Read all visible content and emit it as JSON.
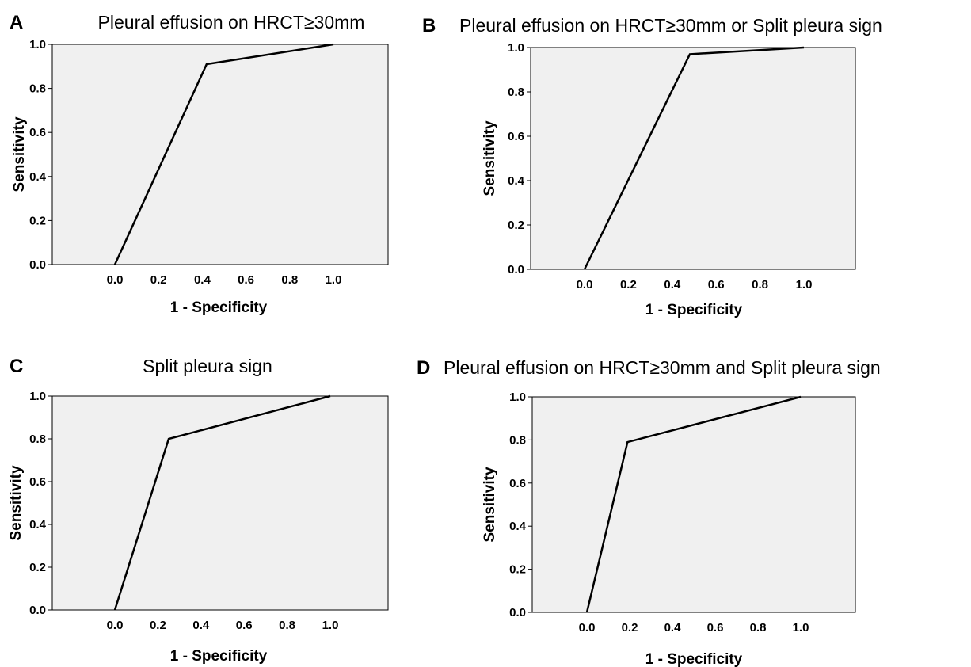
{
  "chart_data": [
    {
      "type": "line",
      "panel": "A",
      "title": "Pleural effusion on HRCT≥30mm",
      "xlabel": "1 - Specificity",
      "ylabel": "Sensitivity",
      "xlim": [
        0,
        1
      ],
      "ylim": [
        0,
        1
      ],
      "x_ticks": [
        "0.0",
        "0.2",
        "0.4",
        "0.6",
        "0.8",
        "1.0"
      ],
      "y_ticks": [
        "0.0",
        "0.2",
        "0.4",
        "0.6",
        "0.8",
        "1.0"
      ],
      "grid": false,
      "series": [
        {
          "x": [
            0,
            0.42,
            1.0
          ],
          "y": [
            0,
            0.91,
            1.0
          ]
        }
      ]
    },
    {
      "type": "line",
      "panel": "B",
      "title": "Pleural effusion on HRCT≥30mm or Split pleura sign",
      "xlabel": "1 - Specificity",
      "ylabel": "Sensitivity",
      "xlim": [
        0,
        1
      ],
      "ylim": [
        0,
        1
      ],
      "x_ticks": [
        "0.0",
        "0.2",
        "0.4",
        "0.6",
        "0.8",
        "1.0"
      ],
      "y_ticks": [
        "0.0",
        "0.2",
        "0.4",
        "0.6",
        "0.8",
        "1.0"
      ],
      "grid": false,
      "series": [
        {
          "x": [
            0,
            0.48,
            1.0
          ],
          "y": [
            0,
            0.97,
            1.0
          ]
        }
      ]
    },
    {
      "type": "line",
      "panel": "C",
      "title": "Split pleura sign",
      "xlabel": "1 - Specificity",
      "ylabel": "Sensitivity",
      "xlim": [
        0,
        1
      ],
      "ylim": [
        0,
        1
      ],
      "x_ticks": [
        "0.0",
        "0.2",
        "0.4",
        "0.6",
        "0.8",
        "1.0"
      ],
      "y_ticks": [
        "0.0",
        "0.2",
        "0.4",
        "0.6",
        "0.8",
        "1.0"
      ],
      "grid": false,
      "series": [
        {
          "x": [
            0,
            0.25,
            1.0
          ],
          "y": [
            0,
            0.8,
            1.0
          ]
        }
      ]
    },
    {
      "type": "line",
      "panel": "D",
      "title": "Pleural effusion on HRCT≥30mm and Split pleura sign",
      "xlabel": "1 - Specificity",
      "ylabel": "Sensitivity",
      "xlim": [
        0,
        1
      ],
      "ylim": [
        0,
        1
      ],
      "x_ticks": [
        "0.0",
        "0.2",
        "0.4",
        "0.6",
        "0.8",
        "1.0"
      ],
      "y_ticks": [
        "0.0",
        "0.2",
        "0.4",
        "0.6",
        "0.8",
        "1.0"
      ],
      "grid": false,
      "series": [
        {
          "x": [
            0,
            0.19,
            1.0
          ],
          "y": [
            0,
            0.79,
            1.0
          ]
        }
      ]
    }
  ]
}
